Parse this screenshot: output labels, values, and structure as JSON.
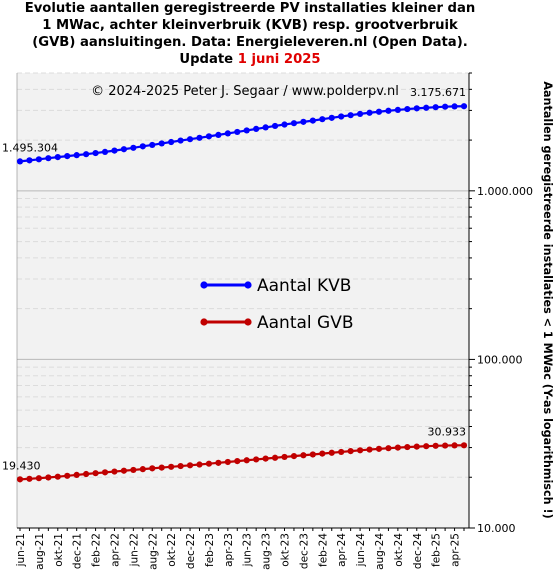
{
  "title": {
    "line1": "Evolutie aantallen geregistreerde PV installaties kleiner dan",
    "line2": "1 MWac, achter kleinverbruik (KVB) resp. grootverbruik",
    "line3": "(GVB) aansluitingen. Data: Energieleveren.nl (Open Data).",
    "line4_prefix": "Update ",
    "line4_date": "1 juni 2025"
  },
  "copyright": "© 2024-2025  Peter J. Segaar / www.polderpv.nl",
  "colors": {
    "kvb": "#0000ff",
    "gvb": "#c00000",
    "background": "#f2f2f2",
    "title_highlight": "#e00000"
  },
  "chart_data": {
    "type": "line",
    "yscale": "log",
    "ylim": [
      10000,
      5000000
    ],
    "ylabel": "Aantallen geregistreerde installaties < 1 MWac (Y-as logarithmisch !)",
    "yticks": [
      {
        "value": 10000,
        "label": "10.000"
      },
      {
        "value": 100000,
        "label": "100.000"
      },
      {
        "value": 1000000,
        "label": "1.000.000"
      }
    ],
    "x_labels": [
      "jun-21",
      "aug-21",
      "okt-21",
      "dec-21",
      "feb-22",
      "apr-22",
      "jun-22",
      "aug-22",
      "okt-22",
      "dec-22",
      "feb-23",
      "apr-23",
      "jun-23",
      "aug-23",
      "okt-23",
      "dec-23",
      "feb-24",
      "apr-24",
      "jun-24",
      "aug-24",
      "okt-24",
      "dec-24",
      "feb-25",
      "apr-25"
    ],
    "x_months": [
      "2021-06",
      "2021-07",
      "2021-08",
      "2021-09",
      "2021-10",
      "2021-11",
      "2021-12",
      "2022-01",
      "2022-02",
      "2022-03",
      "2022-04",
      "2022-05",
      "2022-06",
      "2022-07",
      "2022-08",
      "2022-09",
      "2022-10",
      "2022-11",
      "2022-12",
      "2023-01",
      "2023-02",
      "2023-03",
      "2023-04",
      "2023-05",
      "2023-06",
      "2023-07",
      "2023-08",
      "2023-09",
      "2023-10",
      "2023-11",
      "2023-12",
      "2024-01",
      "2024-02",
      "2024-03",
      "2024-04",
      "2024-05",
      "2024-06",
      "2024-07",
      "2024-08",
      "2024-09",
      "2024-10",
      "2024-11",
      "2024-12",
      "2025-01",
      "2025-02",
      "2025-03",
      "2025-04",
      "2025-05"
    ],
    "series": [
      {
        "name": "Aantal KVB",
        "color": "#0000ff",
        "values": [
          1495304,
          1516000,
          1538000,
          1562000,
          1585000,
          1607000,
          1628000,
          1650000,
          1675000,
          1702000,
          1732000,
          1765000,
          1800000,
          1836000,
          1872000,
          1910000,
          1948000,
          1987000,
          2025000,
          2063000,
          2104000,
          2147000,
          2191000,
          2236000,
          2282000,
          2330000,
          2378000,
          2426000,
          2474000,
          2520000,
          2565000,
          2610000,
          2660000,
          2710000,
          2760000,
          2810000,
          2860000,
          2905000,
          2945000,
          2985000,
          3020000,
          3055000,
          3085000,
          3110000,
          3135000,
          3155000,
          3168000,
          3175671
        ],
        "first_label": "1.495.304",
        "last_label": "3.175.671"
      },
      {
        "name": "Aantal GVB",
        "color": "#c00000",
        "values": [
          19430,
          19580,
          19750,
          19940,
          20160,
          20400,
          20650,
          20900,
          21140,
          21380,
          21620,
          21860,
          22100,
          22340,
          22580,
          22820,
          23060,
          23300,
          23540,
          23800,
          24070,
          24350,
          24640,
          24930,
          25220,
          25510,
          25800,
          26100,
          26400,
          26700,
          27000,
          27300,
          27620,
          27940,
          28260,
          28580,
          28900,
          29200,
          29480,
          29740,
          29980,
          30200,
          30400,
          30570,
          30720,
          30830,
          30900,
          30933
        ],
        "first_label": "19.430",
        "last_label": "30.933"
      }
    ],
    "legend_position": "center-left",
    "grid": true
  }
}
